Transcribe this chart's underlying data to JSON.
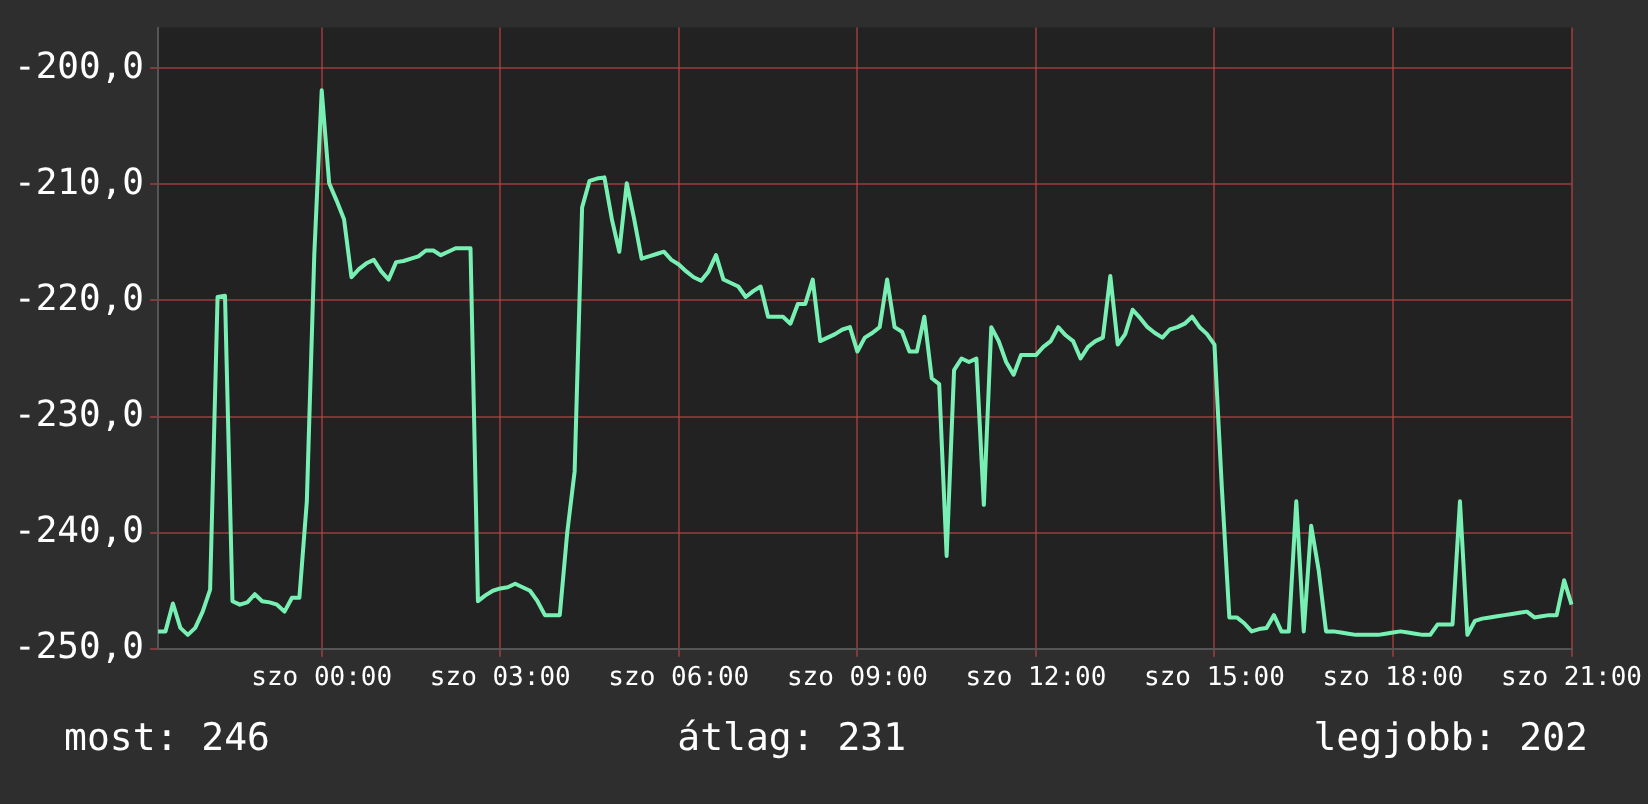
{
  "chart_data": {
    "type": "line",
    "marker": "none",
    "grid": true,
    "ylim": [
      -250,
      -196.5
    ],
    "yticks": [
      {
        "value": -250,
        "label": "-250,0"
      },
      {
        "value": -240,
        "label": "-240,0"
      },
      {
        "value": -230,
        "label": "-230,0"
      },
      {
        "value": -220,
        "label": "-220,0"
      },
      {
        "value": -210,
        "label": "-210,0"
      },
      {
        "value": -200,
        "label": "-200,0"
      }
    ],
    "annotations": [
      "most: 246",
      "átlag: 231",
      "legjobb: 202"
    ],
    "categories": [
      null,
      null,
      null,
      null,
      null,
      null,
      null,
      null,
      null,
      null,
      null,
      null,
      null,
      null,
      null,
      null,
      null,
      null,
      null,
      null,
      null,
      null,
      "szo 00:00",
      null,
      null,
      null,
      null,
      null,
      null,
      null,
      null,
      null,
      null,
      null,
      null,
      null,
      null,
      null,
      null,
      null,
      null,
      null,
      null,
      null,
      null,
      null,
      "szo 03:00",
      null,
      null,
      null,
      null,
      null,
      null,
      null,
      null,
      null,
      null,
      null,
      null,
      null,
      null,
      null,
      null,
      null,
      null,
      null,
      null,
      null,
      null,
      null,
      "szo 06:00",
      null,
      null,
      null,
      null,
      null,
      null,
      null,
      null,
      null,
      null,
      null,
      null,
      null,
      null,
      null,
      null,
      null,
      null,
      null,
      null,
      null,
      null,
      null,
      "szo 09:00",
      null,
      null,
      null,
      null,
      null,
      null,
      null,
      null,
      null,
      null,
      null,
      null,
      null,
      null,
      null,
      null,
      null,
      null,
      null,
      null,
      null,
      null,
      null,
      "szo 12:00",
      null,
      null,
      null,
      null,
      null,
      null,
      null,
      null,
      null,
      null,
      null,
      null,
      null,
      null,
      null,
      null,
      null,
      null,
      null,
      null,
      null,
      null,
      null,
      "szo 15:00",
      null,
      null,
      null,
      null,
      null,
      null,
      null,
      null,
      null,
      null,
      null,
      null,
      null,
      null,
      null,
      null,
      null,
      null,
      null,
      null,
      null,
      null,
      null,
      "szo 18:00",
      null,
      null,
      null,
      null,
      null,
      null,
      null,
      null,
      null,
      null,
      null,
      null,
      null,
      null,
      null,
      null,
      null,
      null,
      null,
      null,
      null,
      null,
      null,
      "szo 21:00"
    ],
    "series": [
      {
        "color": "#78f0b4",
        "values": [
          -248.5,
          -248.5,
          -246.1,
          -248.2,
          -248.8,
          -248.2,
          -246.8,
          -244.9,
          -219.7,
          -219.6,
          -245.9,
          -246.2,
          -246.0,
          -245.3,
          -245.9,
          -246.0,
          -246.2,
          -246.8,
          -245.6,
          -245.6,
          -237.3,
          -216.1,
          -201.9,
          -209.9,
          -211.4,
          -213.0,
          -218.0,
          -217.3,
          -216.8,
          -216.5,
          -217.5,
          -218.2,
          -216.7,
          -216.6,
          -216.4,
          -216.2,
          -215.7,
          -215.7,
          -216.1,
          -215.8,
          -215.5,
          -215.5,
          -215.5,
          -245.9,
          -245.4,
          -245.0,
          -244.8,
          -244.7,
          -244.4,
          -244.7,
          -245.0,
          -245.9,
          -247.1,
          -247.1,
          -247.1,
          -240.0,
          -234.7,
          -212.0,
          -209.7,
          -209.5,
          -209.4,
          -213.0,
          -215.8,
          -209.9,
          -213.0,
          -216.4,
          -216.2,
          -216.0,
          -215.8,
          -216.5,
          -216.9,
          -217.5,
          -218.0,
          -218.3,
          -217.5,
          -216.1,
          -218.2,
          -218.5,
          -218.8,
          -219.7,
          -219.2,
          -218.8,
          -221.4,
          -221.4,
          -221.4,
          -222.0,
          -220.3,
          -220.3,
          -218.2,
          -223.5,
          -223.2,
          -222.9,
          -222.5,
          -222.3,
          -224.4,
          -223.2,
          -222.8,
          -222.3,
          -218.2,
          -222.3,
          -222.7,
          -224.4,
          -224.4,
          -221.4,
          -226.7,
          -227.2,
          -242.0,
          -226.0,
          -225.0,
          -225.3,
          -225.0,
          -237.6,
          -222.3,
          -223.5,
          -225.3,
          -226.4,
          -224.7,
          -224.7,
          -224.7,
          -224.0,
          -223.5,
          -222.3,
          -223.0,
          -223.5,
          -225.0,
          -224.0,
          -223.5,
          -223.2,
          -217.9,
          -223.8,
          -222.9,
          -220.8,
          -221.5,
          -222.3,
          -222.8,
          -223.2,
          -222.5,
          -222.3,
          -222.0,
          -221.4,
          -222.3,
          -222.9,
          -223.8,
          -236.2,
          -247.3,
          -247.3,
          -247.8,
          -248.5,
          -248.3,
          -248.2,
          -247.1,
          -248.5,
          -248.5,
          -237.3,
          -248.5,
          -239.4,
          -243.2,
          -248.5,
          -248.5,
          -248.6,
          -248.7,
          -248.8,
          -248.8,
          -248.8,
          -248.8,
          -248.7,
          -248.6,
          -248.5,
          -248.6,
          -248.7,
          -248.8,
          -248.8,
          -247.9,
          -247.9,
          -247.9,
          -237.3,
          -248.8,
          -247.6,
          -247.4,
          -247.3,
          -247.2,
          -247.1,
          -247.0,
          -246.9,
          -246.8,
          -247.3,
          -247.2,
          -247.1,
          -247.1,
          -244.1,
          -246.2
        ]
      }
    ]
  }
}
